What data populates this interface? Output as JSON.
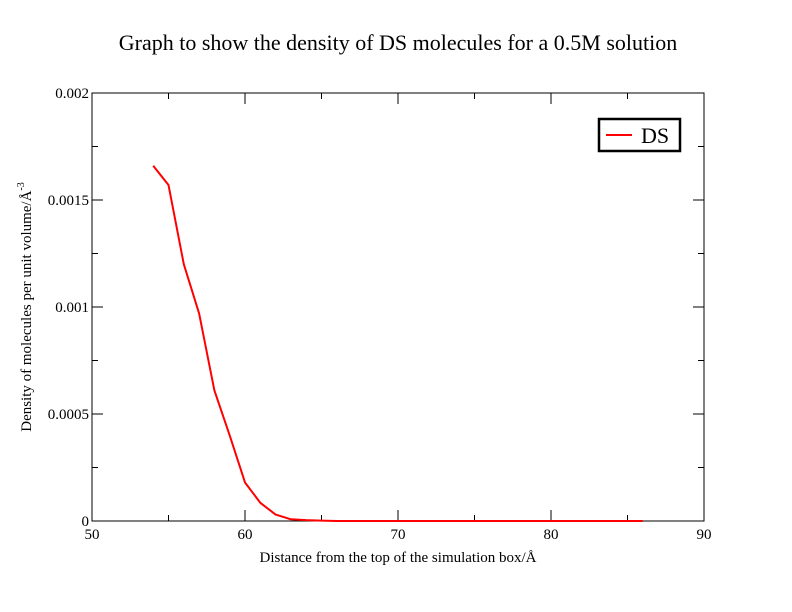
{
  "chart_data": {
    "type": "line",
    "title": "Graph to show the density of DS molecules for a 0.5M solution",
    "xlabel": "Distance from the top of the simulation box/Å",
    "ylabel": "Density of molecules per unit volume/Å",
    "ylabel_superscript": "-3",
    "xlim": [
      50,
      90
    ],
    "ylim": [
      0,
      0.002
    ],
    "x_ticks": [
      50,
      60,
      70,
      80,
      90
    ],
    "x_tick_labels": [
      "50",
      "60",
      "70",
      "80",
      "90"
    ],
    "y_ticks": [
      0,
      0.0005,
      0.001,
      0.0015,
      0.002
    ],
    "y_tick_labels": [
      "0",
      "0.0005",
      "0.001",
      "0.0015",
      "0.002"
    ],
    "grid": false,
    "legend_position": "top-right",
    "series": [
      {
        "name": "DS",
        "color": "#ff0000",
        "x": [
          54,
          55,
          56,
          57,
          58,
          59,
          60,
          61,
          62,
          63,
          64,
          65,
          66,
          67,
          68,
          69,
          70,
          71,
          72,
          73,
          74,
          75,
          76,
          77,
          78,
          79,
          80,
          81,
          82,
          83,
          84,
          85,
          86
        ],
        "y": [
          0.00166,
          0.00157,
          0.0012,
          0.00097,
          0.00061,
          0.0004,
          0.00018,
          8.5e-05,
          3e-05,
          8e-06,
          4e-06,
          2e-06,
          0,
          0,
          0,
          0,
          0,
          0,
          0,
          0,
          0,
          0,
          0,
          0,
          0,
          0,
          0,
          0,
          0,
          0,
          0,
          0,
          0
        ]
      }
    ]
  }
}
